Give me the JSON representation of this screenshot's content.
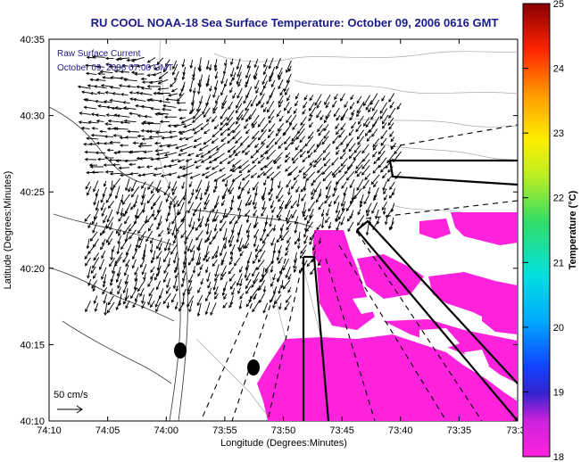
{
  "title": "RU COOL  NOAA-18  Sea Surface Temperature:  October 09, 2006 0616 GMT",
  "inset": {
    "line1": "Raw Surface Current",
    "line2": "October 09, 2006 07:00 GMT"
  },
  "scale_label": "50 cm/s",
  "axes": {
    "xlabel": "Longitude (Degrees:Minutes)",
    "ylabel": "Latitude (Degrees:Minutes)",
    "xticks": [
      "74:10",
      "74:05",
      "74:00",
      "73:55",
      "73:50",
      "73:45",
      "73:40",
      "73:35",
      "73:3"
    ],
    "yticks": [
      "40:35",
      "40:30",
      "40:25",
      "40:20",
      "40:15",
      "40:10"
    ]
  },
  "colorbar": {
    "label": "Temperature (°C)",
    "ticks": [
      "25",
      "24",
      "23",
      "22",
      "21",
      "20",
      "19",
      "18"
    ],
    "range": [
      18,
      25
    ]
  },
  "colors": {
    "title": "#1a1a8c",
    "sst_fill": "#ff22dd",
    "vectors": "#000000",
    "bathymetry": "#999999"
  },
  "chart_data": {
    "type": "map",
    "xlim_deg_min": [
      "74:10",
      "73:30"
    ],
    "ylim_deg_min": [
      "40:10",
      "40:35"
    ],
    "legend": "none",
    "grid": false
  }
}
